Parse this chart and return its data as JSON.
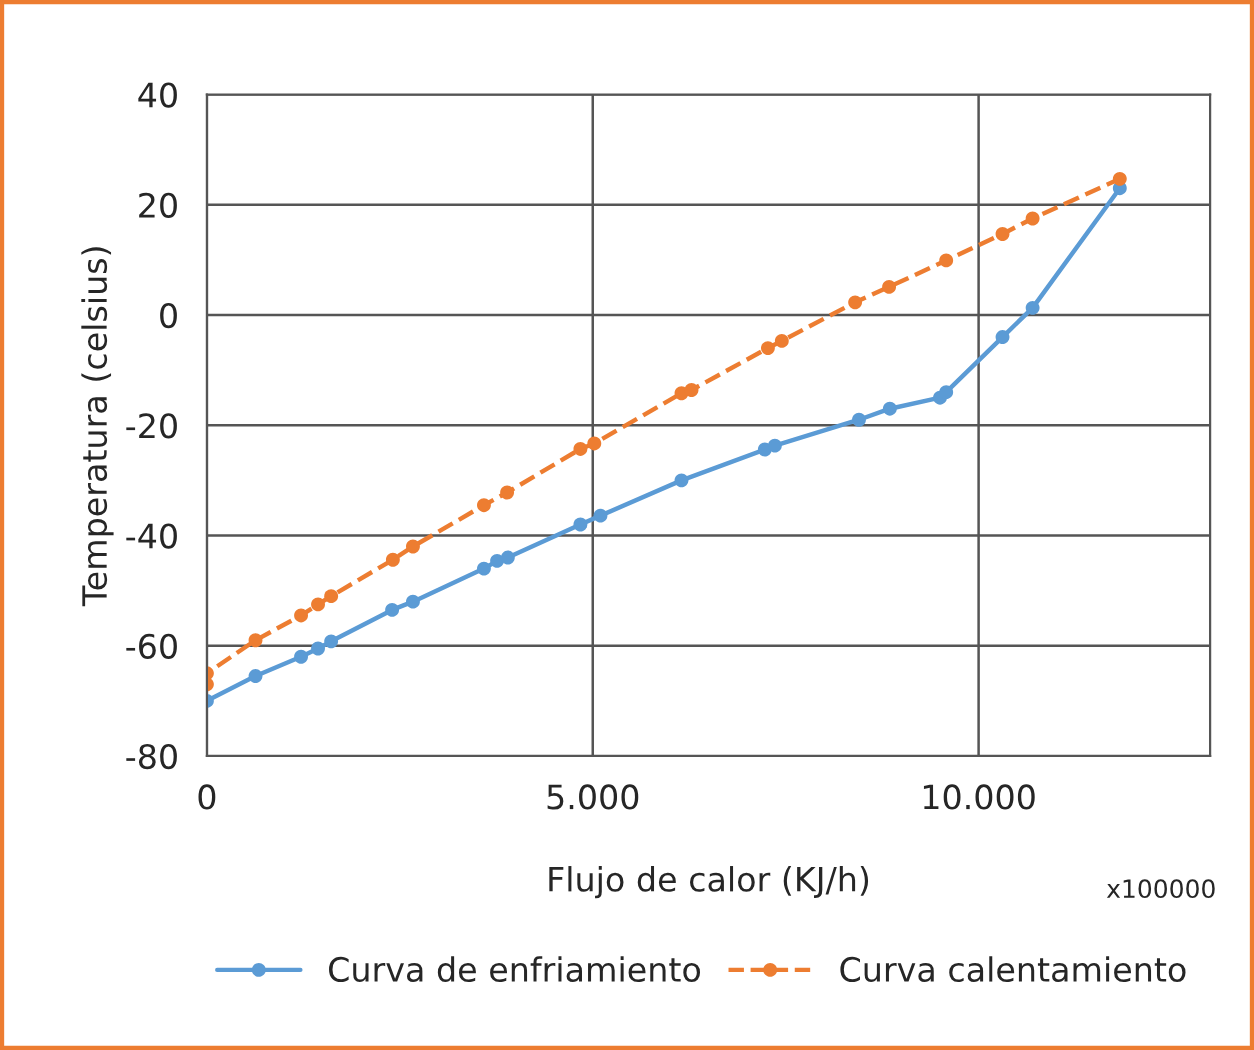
{
  "chart_data": {
    "type": "line",
    "xlabel": "Flujo de calor (KJ/h)",
    "ylabel": "Temperatura (celsius)",
    "annotations": [
      "x100000"
    ],
    "xlim": [
      0,
      13000
    ],
    "xticks": [
      0,
      {
        "value": 5000,
        "label": "5.000"
      },
      {
        "value": 10000,
        "label": "10.000"
      }
    ],
    "ylim": [
      -80,
      40
    ],
    "yticks": [
      -80,
      -60,
      -40,
      -20,
      0,
      20,
      40
    ],
    "grid": true,
    "legend": "bottom",
    "marker": "circle",
    "series": [
      {
        "name": "Curva de enfriamiento",
        "color": "#5b9bd5",
        "line_style": "solid",
        "x": [
          0,
          630,
          1220,
          1440,
          1610,
          2400,
          2670,
          3590,
          3760,
          3900,
          4840,
          5100,
          6150,
          7230,
          7360,
          8450,
          8850,
          9500,
          9580,
          10310,
          10700,
          11830
        ],
        "values": [
          -70,
          -65.5,
          -62,
          -60.5,
          -59.2,
          -53.5,
          -52,
          -46,
          -44.6,
          -44,
          -38,
          -36.4,
          -30,
          -24.4,
          -23.7,
          -19,
          -17,
          -15,
          -14,
          -4,
          1.3,
          23
        ]
      },
      {
        "name": "Curva calentamiento",
        "color": "#ed7d31",
        "line_style": "dashed",
        "x": [
          0,
          0,
          630,
          1220,
          1440,
          1610,
          2410,
          2670,
          3590,
          3890,
          4840,
          5020,
          6150,
          6280,
          7270,
          7450,
          8400,
          8840,
          9580,
          10310,
          10700,
          11830
        ],
        "values": [
          -67,
          -65,
          -59,
          -54.5,
          -52.5,
          -51,
          -44.4,
          -42,
          -34.5,
          -32.2,
          -24.3,
          -23.3,
          -14.2,
          -13.6,
          -6,
          -4.7,
          2.3,
          5.1,
          9.9,
          14.7,
          17.5,
          24.7
        ]
      }
    ]
  }
}
